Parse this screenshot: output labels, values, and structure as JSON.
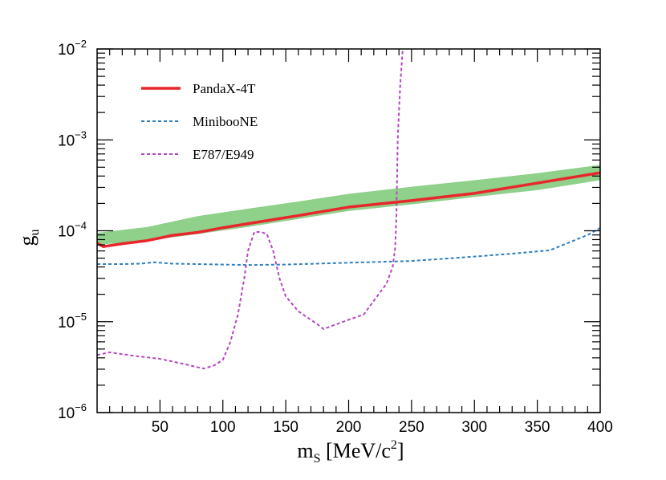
{
  "chart_data": {
    "type": "line",
    "scale": {
      "x": "linear",
      "y": "log"
    },
    "xlim": [
      0,
      400
    ],
    "ylim": [
      1e-06,
      0.01
    ],
    "xlabel": {
      "base": "m",
      "sub": "S",
      "rest": " [MeV/c",
      "sup": "2",
      "close": "]"
    },
    "ylabel": {
      "base": "g",
      "sub": "u"
    },
    "x_ticks": [
      50,
      100,
      150,
      200,
      250,
      300,
      350,
      400
    ],
    "y_ticks": [
      {
        "value": 1e-06,
        "base": "10",
        "exp": "−6"
      },
      {
        "value": 1e-05,
        "base": "10",
        "exp": "−5"
      },
      {
        "value": 0.0001,
        "base": "10",
        "exp": "−4"
      },
      {
        "value": 0.001,
        "base": "10",
        "exp": "−3"
      },
      {
        "value": 0.01,
        "base": "10",
        "exp": "−2"
      }
    ],
    "legend": [
      {
        "label": "PandaX-4T",
        "color": "#e8272c",
        "style": "solid"
      },
      {
        "label": "MinibooNE",
        "color": "#2e7fbf",
        "style": "dashed"
      },
      {
        "label": "E787/E949",
        "color": "#b646c0",
        "style": "dashed"
      }
    ],
    "band": {
      "name": "PandaX-4T sensitivity band",
      "color": "#8fd08b",
      "x": [
        0,
        40,
        80,
        120,
        160,
        200,
        250,
        300,
        350,
        400
      ],
      "upper": [
        9.5e-05,
        0.00011,
        0.000145,
        0.000175,
        0.00021,
        0.000255,
        0.000305,
        0.00036,
        0.00043,
        0.00053
      ],
      "lower": [
        7e-05,
        7.8e-05,
        9.2e-05,
        0.00011,
        0.000135,
        0.000165,
        0.000195,
        0.000235,
        0.00028,
        0.00036
      ]
    },
    "series": [
      {
        "name": "PandaX-4T",
        "color": "#e8272c",
        "style": "solid",
        "x": [
          0,
          5,
          20,
          40,
          60,
          80,
          100,
          130,
          160,
          200,
          250,
          300,
          350,
          400
        ],
        "y": [
          7.3e-05,
          6.7e-05,
          7.2e-05,
          7.8e-05,
          8.9e-05,
          9.6e-05,
          0.000108,
          0.000126,
          0.000147,
          0.000182,
          0.000215,
          0.000258,
          0.000335,
          0.000435
        ]
      },
      {
        "name": "MinibooNE",
        "color": "#2e7fbf",
        "style": "dashed",
        "x": [
          0,
          20,
          35,
          45,
          60,
          80,
          120,
          150,
          200,
          250,
          300,
          330,
          360,
          375,
          390,
          400
        ],
        "y": [
          4.3e-05,
          4.3e-05,
          4.35e-05,
          4.5e-05,
          4.35e-05,
          4.3e-05,
          4.2e-05,
          4.25e-05,
          4.45e-05,
          4.65e-05,
          5.2e-05,
          5.6e-05,
          6.1e-05,
          7.4e-05,
          9e-05,
          0.000107
        ]
      },
      {
        "name": "E787/E949",
        "color": "#b646c0",
        "style": "dashed",
        "x": [
          0,
          10,
          30,
          50,
          70,
          80,
          85,
          93,
          100,
          106,
          112,
          117,
          120,
          125,
          130,
          135,
          140,
          145,
          150,
          160,
          175,
          180,
          200,
          212,
          220,
          230,
          235,
          237,
          238,
          239,
          241,
          243
        ],
        "y": [
          4.3e-06,
          4.6e-06,
          4.2e-06,
          3.9e-06,
          3.4e-06,
          3.15e-06,
          3.05e-06,
          3.3e-06,
          3.8e-06,
          6e-06,
          1.2e-05,
          3e-05,
          6e-05,
          9.7e-05,
          9.7e-05,
          9.2e-05,
          6e-05,
          3e-05,
          1.9e-05,
          1.3e-05,
          9.4e-06,
          8.3e-06,
          1.05e-05,
          1.2e-05,
          1.7e-05,
          2.6e-05,
          4e-05,
          6.5e-05,
          0.00015,
          0.001,
          0.004,
          0.01
        ]
      }
    ]
  }
}
